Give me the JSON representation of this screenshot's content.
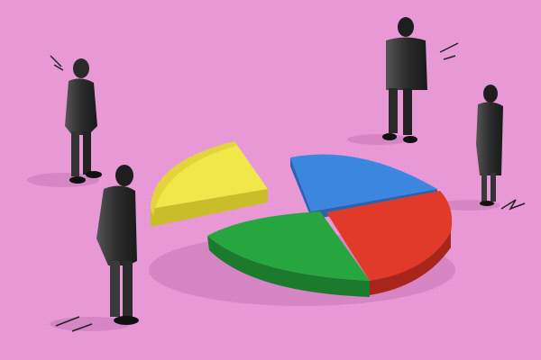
{
  "colors": {
    "background": "#e99ad6",
    "yellow": "#f1e64a",
    "blue": "#3d86e0",
    "red": "#e23a2a",
    "green": "#27a53e",
    "figure": "#3a3a3a"
  },
  "figures": [
    {
      "id": "man-left-top"
    },
    {
      "id": "man-left-front"
    },
    {
      "id": "man-right-top"
    },
    {
      "id": "woman-right"
    }
  ],
  "pie_pieces": [
    "yellow",
    "blue",
    "red",
    "green"
  ]
}
